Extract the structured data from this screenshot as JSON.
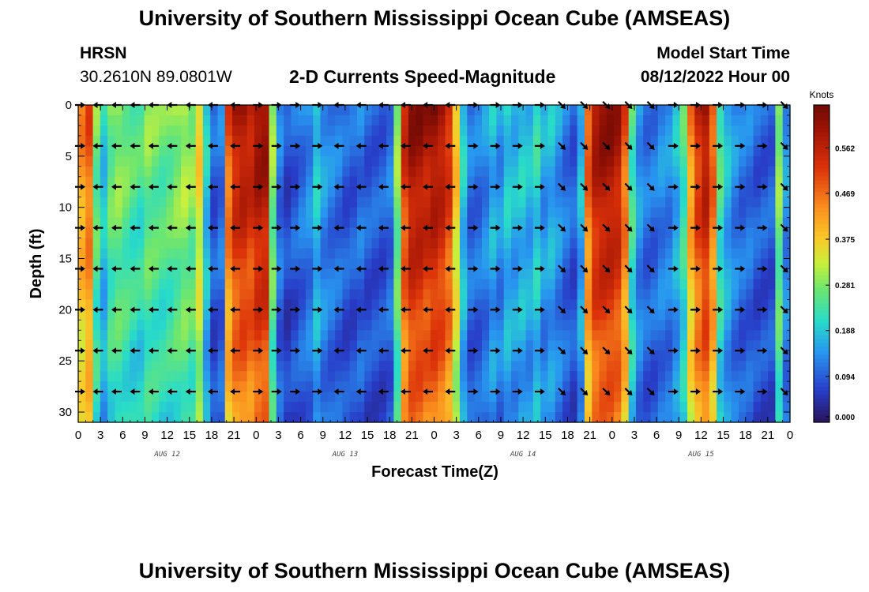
{
  "header": {
    "title": "University of Southern Mississippi Ocean Cube (AMSEAS)",
    "station": "HRSN",
    "coords": "30.2610N  89.0801W",
    "product": "2-D Currents Speed-Magnitude",
    "model_start_label": "Model Start Time",
    "model_start_value": "08/12/2022 Hour 00"
  },
  "footer": {
    "title": "University of Southern Mississippi Ocean Cube (AMSEAS)"
  },
  "chart_data": {
    "type": "heatmap",
    "title": "2-D Currents Speed-Magnitude",
    "xlabel": "Forecast Time(Z)",
    "ylabel": "Depth (ft)",
    "x_range_hours": [
      0,
      96
    ],
    "y_range_ft": [
      0,
      31
    ],
    "x_tick_labels": [
      "0",
      "3",
      "6",
      "9",
      "12",
      "15",
      "18",
      "21",
      "0",
      "3",
      "6",
      "9",
      "12",
      "15",
      "18",
      "21",
      "0",
      "3",
      "6",
      "9",
      "12",
      "15",
      "18",
      "21",
      "0",
      "3",
      "6",
      "9",
      "12",
      "15",
      "18",
      "21",
      "0"
    ],
    "y_ticks": [
      0,
      5,
      10,
      15,
      20,
      25,
      30
    ],
    "date_labels": [
      {
        "label": "AUG 12",
        "hour": 12
      },
      {
        "label": "AUG 13",
        "hour": 36
      },
      {
        "label": "AUG 14",
        "hour": 60
      },
      {
        "label": "AUG 15",
        "hour": 84
      }
    ],
    "colorbar": {
      "units": "Knots",
      "ticks": [
        0.0,
        0.094,
        0.188,
        0.281,
        0.375,
        0.469,
        0.562
      ],
      "tick_labels": [
        "0.000",
        "0.094",
        "0.188",
        "0.281",
        "0.375",
        "0.469",
        "0.562"
      ],
      "range": [
        0,
        0.65
      ]
    },
    "speed_by_hour": [
      0.45,
      0.5,
      0.28,
      0.2,
      0.28,
      0.3,
      0.28,
      0.26,
      0.25,
      0.29,
      0.28,
      0.27,
      0.28,
      0.3,
      0.32,
      0.3,
      0.38,
      0.2,
      0.1,
      0.12,
      0.5,
      0.58,
      0.6,
      0.58,
      0.62,
      0.62,
      0.3,
      0.12,
      0.08,
      0.1,
      0.12,
      0.14,
      0.2,
      0.15,
      0.13,
      0.12,
      0.1,
      0.1,
      0.12,
      0.1,
      0.1,
      0.1,
      0.12,
      0.3,
      0.55,
      0.62,
      0.62,
      0.6,
      0.62,
      0.6,
      0.55,
      0.4,
      0.2,
      0.12,
      0.12,
      0.14,
      0.18,
      0.15,
      0.2,
      0.18,
      0.2,
      0.18,
      0.22,
      0.16,
      0.18,
      0.15,
      0.12,
      0.1,
      0.18,
      0.5,
      0.6,
      0.62,
      0.62,
      0.6,
      0.5,
      0.25,
      0.15,
      0.12,
      0.12,
      0.14,
      0.14,
      0.18,
      0.25,
      0.45,
      0.55,
      0.6,
      0.5,
      0.25,
      0.18,
      0.14,
      0.12,
      0.12,
      0.1,
      0.1,
      0.1,
      0.3,
      0.15
    ],
    "arrow_depths_ft": [
      0,
      4,
      8,
      12,
      16,
      20,
      24,
      28
    ],
    "arrow_hours": [
      0,
      2.5,
      5,
      7.5,
      10,
      12.5,
      15,
      18,
      21,
      24,
      26.5,
      29,
      32,
      35,
      38,
      41,
      44,
      47,
      50,
      53,
      56,
      59,
      62,
      65,
      68,
      71,
      74,
      77,
      80,
      83,
      86,
      89,
      92,
      95
    ],
    "arrow_directions": [
      "E",
      "W",
      "W",
      "W",
      "W",
      "W",
      "W",
      "W",
      "W",
      "E",
      "E",
      "E",
      "E",
      "W",
      "W",
      "W",
      "W",
      "W",
      "W",
      "E",
      "E",
      "E",
      "E",
      "SE",
      "SE",
      "SE",
      "SE",
      "SE",
      "E",
      "E",
      "E",
      "E",
      "E",
      "SE"
    ]
  }
}
